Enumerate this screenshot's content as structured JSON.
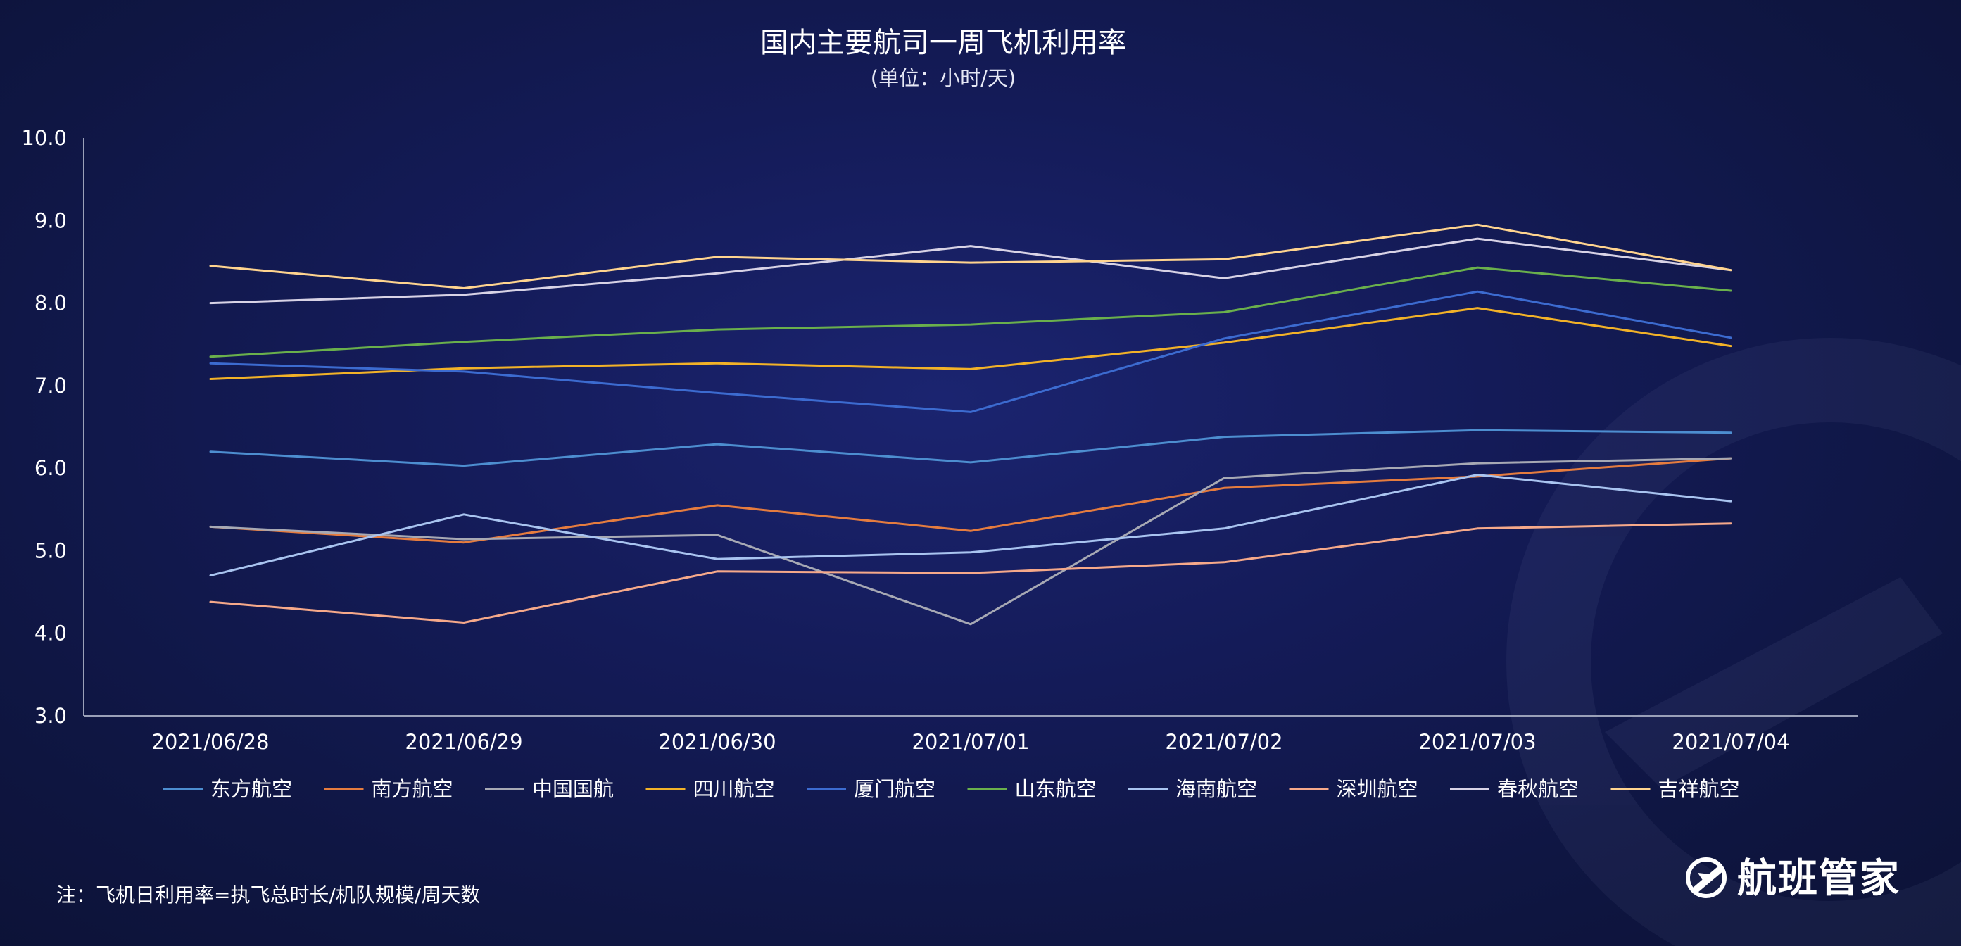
{
  "chart_data": {
    "type": "line",
    "title": "国内主要航司一周飞机利用率",
    "subtitle": "(单位：小时/天)",
    "x": [
      "2021/06/28",
      "2021/06/29",
      "2021/06/30",
      "2021/07/01",
      "2021/07/02",
      "2021/07/03",
      "2021/07/04"
    ],
    "ylim": [
      3.0,
      10.0
    ],
    "yticks": [
      "3.0",
      "4.0",
      "5.0",
      "6.0",
      "7.0",
      "8.0",
      "9.0",
      "10.0"
    ],
    "grid": false,
    "legend_position": "bottom",
    "series": [
      {
        "name": "东方航空",
        "color": "#4d8ed0",
        "values": [
          6.2,
          6.03,
          6.29,
          6.07,
          6.38,
          6.46,
          6.43
        ]
      },
      {
        "name": "南方航空",
        "color": "#e57c3f",
        "values": [
          5.29,
          5.1,
          5.55,
          5.24,
          5.76,
          5.9,
          6.12
        ]
      },
      {
        "name": "中国国航",
        "color": "#a7a9b4",
        "values": [
          5.29,
          5.14,
          5.19,
          4.11,
          5.88,
          6.06,
          6.12
        ]
      },
      {
        "name": "四川航空",
        "color": "#f2b228",
        "values": [
          7.08,
          7.21,
          7.27,
          7.2,
          7.52,
          7.94,
          7.48
        ]
      },
      {
        "name": "厦门航空",
        "color": "#3c6bd0",
        "values": [
          7.27,
          7.17,
          6.91,
          6.68,
          7.57,
          8.14,
          7.58
        ]
      },
      {
        "name": "山东航空",
        "color": "#6ab04c",
        "values": [
          7.35,
          7.53,
          7.68,
          7.74,
          7.89,
          8.43,
          8.15
        ]
      },
      {
        "name": "海南航空",
        "color": "#a9c4f0",
        "values": [
          4.7,
          5.44,
          4.9,
          4.98,
          5.27,
          5.92,
          5.6
        ]
      },
      {
        "name": "深圳航空",
        "color": "#f6a98a",
        "values": [
          4.38,
          4.13,
          4.75,
          4.73,
          4.86,
          5.27,
          5.33
        ]
      },
      {
        "name": "春秋航空",
        "color": "#d8d3e6",
        "values": [
          8.0,
          8.1,
          8.36,
          8.69,
          8.3,
          8.78,
          8.4
        ]
      },
      {
        "name": "吉祥航空",
        "color": "#ffd48f",
        "values": [
          8.45,
          8.18,
          8.56,
          8.49,
          8.53,
          8.95,
          8.4
        ]
      }
    ]
  },
  "footnote": "注：飞机日利用率=执飞总时长/机队规模/周天数",
  "logo_text": "航班管家",
  "logo_icon": "airplane-circle-icon"
}
